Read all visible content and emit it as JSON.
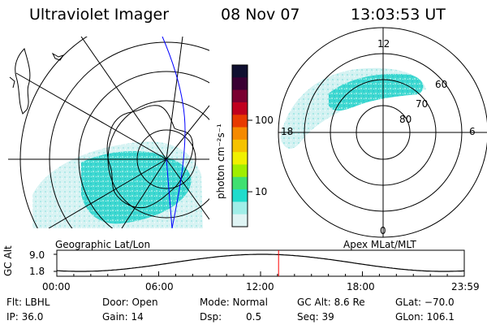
{
  "header": {
    "title": "Ultraviolet Imager",
    "date": "08 Nov 07",
    "time": "13:03:53 UT"
  },
  "colorbar": {
    "label": "photon cm⁻²s⁻¹",
    "ticks": [
      "100",
      "10"
    ],
    "colors": [
      "#101030",
      "#3a0033",
      "#7a0030",
      "#c0001e",
      "#e83a00",
      "#f58a00",
      "#f5c200",
      "#f0f000",
      "#a0ee00",
      "#40e070",
      "#20dccc",
      "#a0eee8",
      "#dff4f4"
    ]
  },
  "left_panel": {
    "caption": "Geographic Lat/Lon"
  },
  "right_panel": {
    "caption": "Apex MLat/MLT",
    "mlt_labels": {
      "top": "12",
      "left": "18",
      "right": "6",
      "bottom": "0"
    },
    "lat_labels": [
      "60",
      "70",
      "80"
    ]
  },
  "altitude_plot": {
    "ylabel": "GC Alt",
    "yticks": [
      "9.0",
      "1.8"
    ],
    "xticks": [
      "00:00",
      "06:00",
      "12:00",
      "18:00",
      "23:59"
    ],
    "current_hour": 13.06,
    "min_alt": 1.8,
    "max_alt": 9.0
  },
  "metadata": {
    "filter": "Flt: LBHL",
    "ip": "IP: 36.0",
    "door": "Door: Open",
    "gain": "Gain: 14",
    "mode": "Mode: Normal",
    "dsp_label": "Dsp:",
    "dsp_value": "0.5",
    "gc_alt": "GC Alt: 8.6 Re",
    "seq": "Seq: 39",
    "glat": "GLat: −70.0",
    "glon": "GLon: 106.1"
  }
}
